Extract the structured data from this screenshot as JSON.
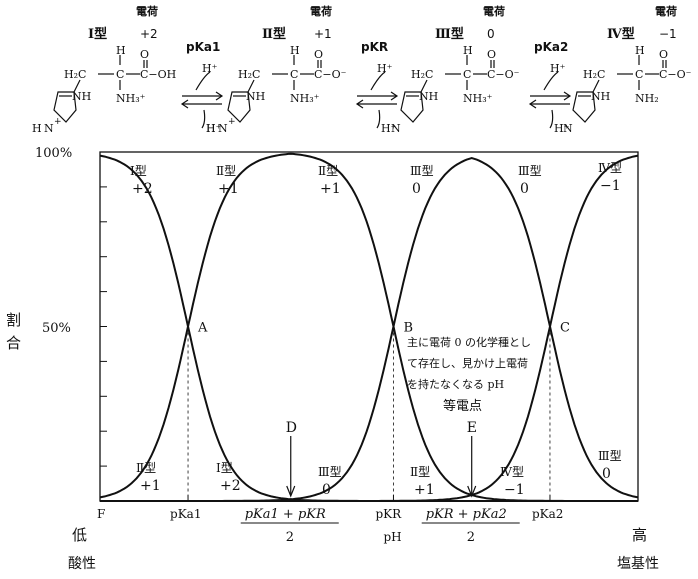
{
  "colors": {
    "red": "#d42a2a",
    "green": "#1a8a3a",
    "blue": "#1a6fb3",
    "ink": "#111111"
  },
  "header": {
    "charge_label": "電荷",
    "forms": [
      {
        "name": "Ⅰ型",
        "charge": "+2",
        "color": "red",
        "atoms": {
          "ch2": "H₂C",
          "h": "H",
          "c": "C",
          "cooh": "C−OH",
          "o": "O",
          "nh3": "NH₃⁺",
          "nh_a": "NH",
          "nh_b": "N",
          "nh_b_charge": "+",
          "h_b": "H"
        }
      },
      {
        "name": "Ⅱ型",
        "charge": "+1",
        "color": "red",
        "atoms": {
          "ch2": "H₂C",
          "h": "H",
          "c": "C",
          "cooh": "C−O⁻",
          "o": "O",
          "nh3": "NH₃⁺",
          "nh_a": "NH",
          "nh_b": "N",
          "nh_b_charge": "+",
          "h_b": "H"
        }
      },
      {
        "name": "Ⅲ型",
        "charge": "0",
        "color": "green",
        "atoms": {
          "ch2": "H₂C",
          "h": "H",
          "c": "C",
          "cooh": "C−O⁻",
          "o": "O",
          "nh3": "NH₃⁺",
          "nh_a": "NH",
          "nh_b": "N",
          "nh_b_charge": "",
          "h_b": ""
        }
      },
      {
        "name": "Ⅳ型",
        "charge": "−1",
        "color": "blue",
        "atoms": {
          "ch2": "H₂C",
          "h": "H",
          "c": "C",
          "cooh": "C−O⁻",
          "o": "O",
          "nh3": "NH₂",
          "nh_a": "NH",
          "nh_b": "N",
          "nh_b_charge": "",
          "h_b": ""
        }
      }
    ],
    "equilibria": [
      {
        "label": "pKa1",
        "h_top": "H⁺",
        "h_bottom": "H⁺"
      },
      {
        "label": "pKR",
        "h_top": "H⁺",
        "h_bottom": "H⁺"
      },
      {
        "label": "pKa2",
        "h_top": "H⁺",
        "h_bottom": "H⁺"
      }
    ]
  },
  "chart_data": {
    "type": "line",
    "xlabel": "pH",
    "ylabel": "割合",
    "y_ticks": [
      "100%",
      "50%"
    ],
    "ylim": [
      0,
      100
    ],
    "x_axis_label_low": "F",
    "x_end_left": "低",
    "x_end_left_sub": "酸性",
    "x_end_right": "高",
    "x_end_right_sub": "塩基性",
    "x_ticks": [
      "pKa1",
      "pKR",
      "pKa2"
    ],
    "x_fraction_ticks": [
      {
        "num": "pKa1 + pKR",
        "den": "2"
      },
      {
        "num": "pKR + pKa2",
        "den": "2"
      }
    ],
    "crossings": [
      "A",
      "B",
      "C"
    ],
    "markers": [
      "D",
      "E"
    ],
    "annotation": "主に電荷 0 の化学種として存在し、見かけ上電荷を持たなくなる pH",
    "annotation_lines": [
      "主に電荷 0 の化学種とし",
      "て存在し、見かけ上電荷",
      "を持たなくなる pH"
    ],
    "isoelectric_label": "等電点",
    "series_top_labels": [
      {
        "name": "Ⅰ型",
        "charge": "+2",
        "color": "red"
      },
      {
        "name": "Ⅱ型",
        "charge": "+1",
        "color": "red"
      },
      {
        "name": "Ⅱ型",
        "charge": "+1",
        "color": "red"
      },
      {
        "name": "Ⅲ型",
        "charge": "0",
        "color": "green"
      },
      {
        "name": "Ⅲ型",
        "charge": "0",
        "color": "green"
      },
      {
        "name": "Ⅳ型",
        "charge": "−1",
        "color": "blue"
      }
    ],
    "series_bottom_labels": [
      {
        "name": "Ⅱ型",
        "charge": "+1",
        "color": "red"
      },
      {
        "name": "Ⅰ型",
        "charge": "+2",
        "color": "red"
      },
      {
        "name": "Ⅲ型",
        "charge": "0",
        "color": "green"
      },
      {
        "name": "Ⅱ型",
        "charge": "+1",
        "color": "red"
      },
      {
        "name": "Ⅳ型",
        "charge": "−1",
        "color": "blue"
      },
      {
        "name": "Ⅲ型",
        "charge": "0",
        "color": "green"
      }
    ],
    "pKa": {
      "pKa1": 1.8,
      "pKR": 6.0,
      "pKa2": 9.2
    },
    "x_range": [
      0,
      11.0
    ]
  }
}
